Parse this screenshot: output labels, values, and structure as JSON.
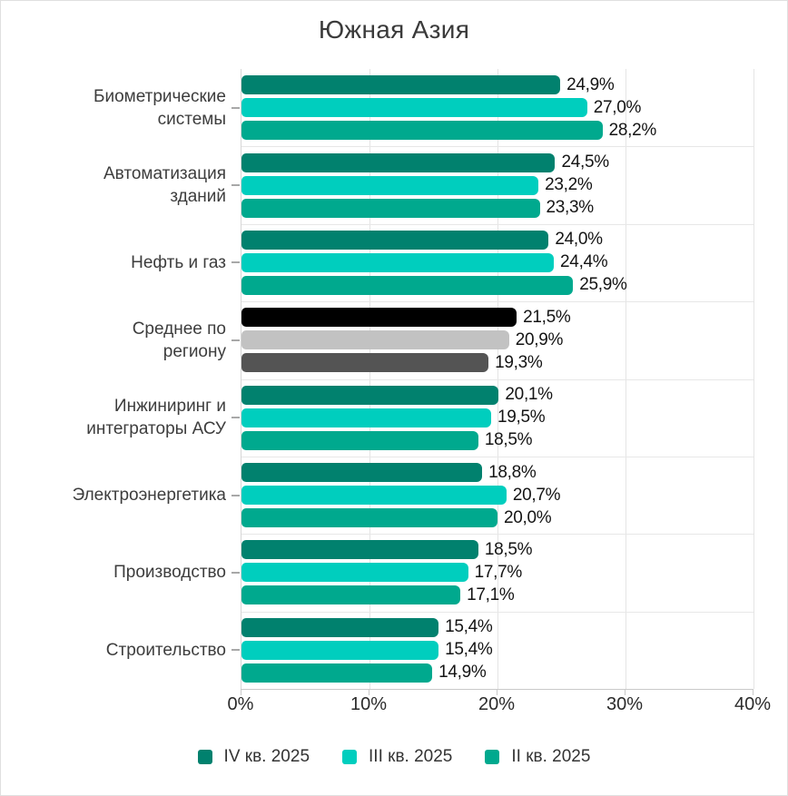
{
  "title": "Южная Азия",
  "chart_data": {
    "type": "bar",
    "orientation": "horizontal",
    "title": "Южная Азия",
    "unit": "%",
    "decimal_separator": ",",
    "xlim": [
      0,
      40
    ],
    "x_tick_labels": [
      "0%",
      "10%",
      "20%",
      "30%",
      "40%"
    ],
    "grid": true,
    "legend_position": "bottom",
    "series": [
      {
        "name": "IV кв. 2025",
        "color": "#01816e"
      },
      {
        "name": "III кв. 2025",
        "color": "#00cebe"
      },
      {
        "name": "II кв. 2025",
        "color": "#00a98e"
      }
    ],
    "categories": [
      {
        "label": "Биометрические\nсистемы",
        "values": [
          24.9,
          27.0,
          28.2
        ],
        "value_labels": [
          "24,9%",
          "27,0%",
          "28,2%"
        ]
      },
      {
        "label": "Автоматизация\nзданий",
        "values": [
          24.5,
          23.2,
          23.3
        ],
        "value_labels": [
          "24,5%",
          "23,2%",
          "23,3%"
        ]
      },
      {
        "label": "Нефть и газ",
        "values": [
          24.0,
          24.4,
          25.9
        ],
        "value_labels": [
          "24,0%",
          "24,4%",
          "25,9%"
        ]
      },
      {
        "label": "Среднее по\nрегиону",
        "values": [
          21.5,
          20.9,
          19.3
        ],
        "value_labels": [
          "21,5%",
          "20,9%",
          "19,3%"
        ],
        "colors": [
          "#000000",
          "#c2c2c2",
          "#545454"
        ]
      },
      {
        "label": "Инжиниринг и\nинтеграторы АСУ",
        "values": [
          20.1,
          19.5,
          18.5
        ],
        "value_labels": [
          "20,1%",
          "19,5%",
          "18,5%"
        ]
      },
      {
        "label": "Электроэнергетика",
        "values": [
          18.8,
          20.7,
          20.0
        ],
        "value_labels": [
          "18,8%",
          "20,7%",
          "20,0%"
        ]
      },
      {
        "label": "Производство",
        "values": [
          18.5,
          17.7,
          17.1
        ],
        "value_labels": [
          "18,5%",
          "17,7%",
          "17,1%"
        ]
      },
      {
        "label": "Строительство",
        "values": [
          15.4,
          15.4,
          14.9
        ],
        "value_labels": [
          "15,4%",
          "15,4%",
          "14,9%"
        ]
      }
    ]
  }
}
